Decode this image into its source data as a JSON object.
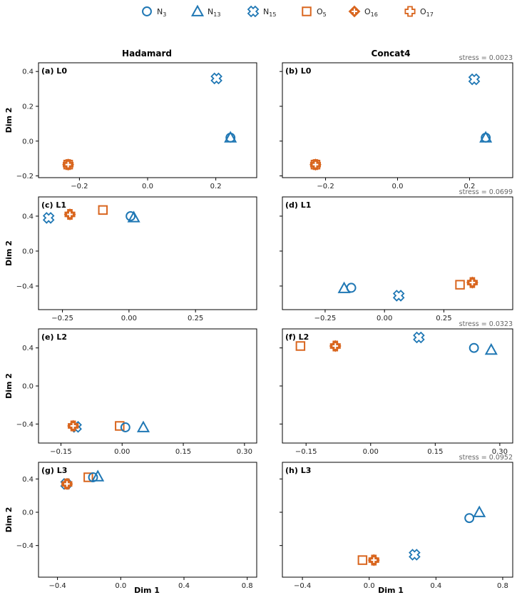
{
  "colors": {
    "N": "#1f77b4",
    "O": "#d9661f"
  },
  "legend": [
    {
      "id": "N3",
      "base": "N",
      "sub": "3",
      "marker": "circle",
      "color": "#1f77b4"
    },
    {
      "id": "N13",
      "base": "N",
      "sub": "13",
      "marker": "triangle",
      "color": "#1f77b4"
    },
    {
      "id": "N15",
      "base": "N",
      "sub": "15",
      "marker": "x",
      "color": "#1f77b4"
    },
    {
      "id": "O5",
      "base": "O",
      "sub": "5",
      "marker": "square",
      "color": "#d9661f"
    },
    {
      "id": "O16",
      "base": "O",
      "sub": "16",
      "marker": "diamond",
      "color": "#d9661f"
    },
    {
      "id": "O17",
      "base": "O",
      "sub": "17",
      "marker": "plus",
      "color": "#d9661f"
    }
  ],
  "columns": [
    "Hadamard",
    "Concat4"
  ],
  "xlabel": "Dim 1",
  "ylabel": "Dim 2",
  "chart_data": [
    {
      "type": "scatter",
      "label": "(a) L0",
      "column": "Hadamard",
      "row": 0,
      "stress": "",
      "xlim": [
        -0.32,
        0.32
      ],
      "xticks": [
        -0.2,
        0.0,
        0.2
      ],
      "xticklabels": [
        "−0.2",
        "0.0",
        "0.2"
      ],
      "ylim": [
        -0.21,
        0.45
      ],
      "yticks": [
        -0.2,
        0.0,
        0.2,
        0.4
      ],
      "yticklabels": [
        "−0.2",
        "0.0",
        "0.2",
        "0.4"
      ],
      "points": [
        {
          "id": "N3",
          "x": 0.243,
          "y": 0.02
        },
        {
          "id": "N13",
          "x": 0.243,
          "y": 0.02
        },
        {
          "id": "N15",
          "x": 0.202,
          "y": 0.36
        },
        {
          "id": "O5",
          "x": -0.233,
          "y": -0.135
        },
        {
          "id": "O16",
          "x": -0.233,
          "y": -0.135
        },
        {
          "id": "O17",
          "x": -0.233,
          "y": -0.135
        }
      ]
    },
    {
      "type": "scatter",
      "label": "(b) L0",
      "column": "Concat4",
      "row": 0,
      "stress": "stress = 0.0023",
      "xlim": [
        -0.32,
        0.32
      ],
      "xticks": [
        -0.2,
        0.0,
        0.2
      ],
      "xticklabels": [
        "−0.2",
        "0.0",
        "0.2"
      ],
      "ylim": [
        -0.21,
        0.45
      ],
      "yticks": [
        -0.2,
        0.0,
        0.2,
        0.4
      ],
      "yticklabels": [
        "",
        "",
        "",
        ""
      ],
      "points": [
        {
          "id": "N3",
          "x": 0.245,
          "y": 0.02
        },
        {
          "id": "N13",
          "x": 0.245,
          "y": 0.02
        },
        {
          "id": "N15",
          "x": 0.213,
          "y": 0.355
        },
        {
          "id": "O5",
          "x": -0.228,
          "y": -0.135
        },
        {
          "id": "O16",
          "x": -0.228,
          "y": -0.135
        },
        {
          "id": "O17",
          "x": -0.228,
          "y": -0.135
        }
      ]
    },
    {
      "type": "scatter",
      "label": "(c) L1",
      "column": "Hadamard",
      "row": 1,
      "stress": "",
      "xlim": [
        -0.34,
        0.48
      ],
      "xticks": [
        -0.25,
        0.0,
        0.25
      ],
      "xticklabels": [
        "−0.25",
        "0.00",
        "0.25"
      ],
      "ylim": [
        -0.67,
        0.62
      ],
      "yticks": [
        -0.4,
        0.0,
        0.4
      ],
      "yticklabels": [
        "−0.4",
        "0.0",
        "0.4"
      ],
      "points": [
        {
          "id": "N3",
          "x": 0.006,
          "y": 0.4
        },
        {
          "id": "N13",
          "x": 0.018,
          "y": 0.385
        },
        {
          "id": "N15",
          "x": -0.302,
          "y": 0.38
        },
        {
          "id": "O5",
          "x": -0.098,
          "y": 0.47
        },
        {
          "id": "O16",
          "x": -0.222,
          "y": 0.42
        },
        {
          "id": "O17",
          "x": -0.222,
          "y": 0.42
        }
      ]
    },
    {
      "type": "scatter",
      "label": "(d) L1",
      "column": "Concat4",
      "row": 1,
      "stress": "stress = 0.0699",
      "xlim": [
        -0.43,
        0.54
      ],
      "xticks": [
        -0.25,
        0.0,
        0.25
      ],
      "xticklabels": [
        "−0.25",
        "0.00",
        "0.25"
      ],
      "ylim": [
        -0.67,
        0.62
      ],
      "yticks": [
        -0.4,
        0.0,
        0.4
      ],
      "yticklabels": [
        "",
        "",
        ""
      ],
      "points": [
        {
          "id": "N3",
          "x": -0.14,
          "y": -0.42
        },
        {
          "id": "N13",
          "x": -0.17,
          "y": -0.425
        },
        {
          "id": "N15",
          "x": 0.06,
          "y": -0.51
        },
        {
          "id": "O5",
          "x": 0.318,
          "y": -0.385
        },
        {
          "id": "O16",
          "x": 0.37,
          "y": -0.36
        },
        {
          "id": "O17",
          "x": 0.37,
          "y": -0.36
        }
      ]
    },
    {
      "type": "scatter",
      "label": "(e) L2",
      "column": "Hadamard",
      "row": 2,
      "stress": "",
      "xlim": [
        -0.205,
        0.33
      ],
      "xticks": [
        -0.15,
        0.0,
        0.15,
        0.3
      ],
      "xticklabels": [
        "−0.15",
        "0.00",
        "0.15",
        "0.30"
      ],
      "ylim": [
        -0.6,
        0.6
      ],
      "yticks": [
        -0.4,
        0.0,
        0.4
      ],
      "yticklabels": [
        "−0.4",
        "0.0",
        "0.4"
      ],
      "points": [
        {
          "id": "N3",
          "x": 0.008,
          "y": -0.435
        },
        {
          "id": "N13",
          "x": 0.052,
          "y": -0.435
        },
        {
          "id": "N15",
          "x": -0.113,
          "y": -0.43
        },
        {
          "id": "O5",
          "x": -0.006,
          "y": -0.42
        },
        {
          "id": "O16",
          "x": -0.12,
          "y": -0.42
        },
        {
          "id": "O17",
          "x": -0.12,
          "y": -0.42
        }
      ]
    },
    {
      "type": "scatter",
      "label": "(f) L2",
      "column": "Concat4",
      "row": 2,
      "stress": "stress = 0.0323",
      "xlim": [
        -0.205,
        0.33
      ],
      "xticks": [
        -0.15,
        0.0,
        0.15,
        0.3
      ],
      "xticklabels": [
        "−0.15",
        "0.00",
        "0.15",
        "0.30"
      ],
      "ylim": [
        -0.6,
        0.6
      ],
      "yticks": [
        -0.4,
        0.0,
        0.4
      ],
      "yticklabels": [
        "",
        "",
        ""
      ],
      "points": [
        {
          "id": "N3",
          "x": 0.24,
          "y": 0.4
        },
        {
          "id": "N13",
          "x": 0.28,
          "y": 0.38
        },
        {
          "id": "N15",
          "x": 0.112,
          "y": 0.51
        },
        {
          "id": "O5",
          "x": -0.163,
          "y": 0.42
        },
        {
          "id": "O16",
          "x": -0.082,
          "y": 0.42
        },
        {
          "id": "O17",
          "x": -0.082,
          "y": 0.42
        }
      ]
    },
    {
      "type": "scatter",
      "label": "(g) L3",
      "column": "Hadamard",
      "row": 3,
      "stress": "",
      "xlim": [
        -0.52,
        0.86
      ],
      "xticks": [
        -0.4,
        0.0,
        0.4,
        0.8
      ],
      "xticklabels": [
        "−0.4",
        "0.0",
        "0.4",
        "0.8"
      ],
      "ylim": [
        -0.78,
        0.6
      ],
      "yticks": [
        -0.4,
        0.0,
        0.4
      ],
      "yticklabels": [
        "−0.4",
        "0.0",
        "0.4"
      ],
      "points": [
        {
          "id": "N3",
          "x": -0.175,
          "y": 0.42
        },
        {
          "id": "N13",
          "x": -0.145,
          "y": 0.43
        },
        {
          "id": "N15",
          "x": -0.345,
          "y": 0.34
        },
        {
          "id": "O5",
          "x": -0.205,
          "y": 0.42
        },
        {
          "id": "O16",
          "x": -0.34,
          "y": 0.34
        },
        {
          "id": "O17",
          "x": -0.34,
          "y": 0.34
        }
      ]
    },
    {
      "type": "scatter",
      "label": "(h) L3",
      "column": "Concat4",
      "row": 3,
      "stress": "stress = 0.0952",
      "xlim": [
        -0.52,
        0.86
      ],
      "xticks": [
        -0.4,
        0.0,
        0.4,
        0.8
      ],
      "xticklabels": [
        "−0.4",
        "0.0",
        "0.4",
        "0.8"
      ],
      "ylim": [
        -0.78,
        0.6
      ],
      "yticks": [
        -0.4,
        0.0,
        0.4
      ],
      "yticklabels": [
        "",
        "",
        ""
      ],
      "points": [
        {
          "id": "N3",
          "x": 0.6,
          "y": -0.07
        },
        {
          "id": "N13",
          "x": 0.66,
          "y": 0.0
        },
        {
          "id": "N15",
          "x": 0.272,
          "y": -0.51
        },
        {
          "id": "O5",
          "x": -0.04,
          "y": -0.575
        },
        {
          "id": "O16",
          "x": 0.028,
          "y": -0.575
        },
        {
          "id": "O17",
          "x": 0.028,
          "y": -0.575
        }
      ]
    }
  ]
}
